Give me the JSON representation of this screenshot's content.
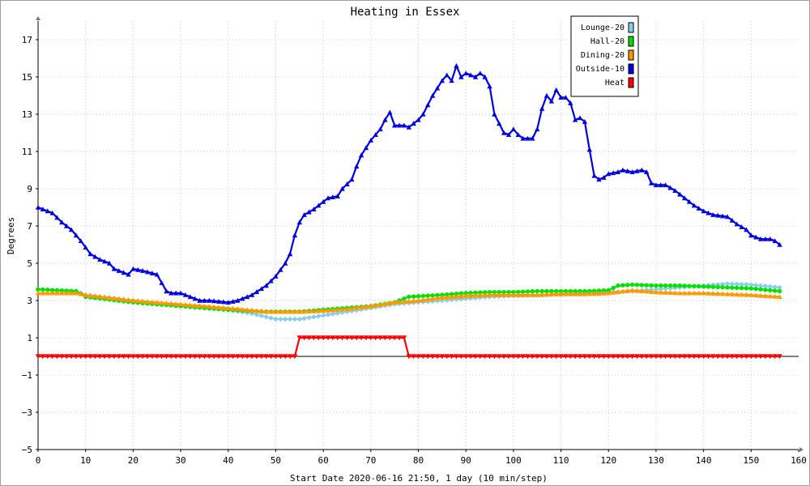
{
  "chart_data": {
    "type": "line",
    "title": "Heating in Essex",
    "xlabel": "Start Date 2020-06-16 21:50, 1 day (10 min/step)",
    "ylabel": "Degrees",
    "xlim": [
      0,
      160
    ],
    "ylim": [
      -5,
      18
    ],
    "x_ticks": [
      0,
      10,
      20,
      30,
      40,
      50,
      60,
      70,
      80,
      90,
      100,
      110,
      120,
      130,
      140,
      150,
      160
    ],
    "y_ticks": [
      -5,
      -3,
      -1,
      1,
      3,
      5,
      7,
      9,
      11,
      13,
      15,
      17
    ],
    "grid": true,
    "legend_position": "top-right",
    "series": [
      {
        "name": "Lounge-20",
        "color": "#87ceeb",
        "marker": "diamond",
        "points": [
          [
            0,
            3.6
          ],
          [
            8,
            3.5
          ],
          [
            10,
            3.3
          ],
          [
            20,
            3.0
          ],
          [
            30,
            2.7
          ],
          [
            40,
            2.5
          ],
          [
            45,
            2.3
          ],
          [
            50,
            2.0
          ],
          [
            55,
            2.0
          ],
          [
            60,
            2.2
          ],
          [
            65,
            2.4
          ],
          [
            70,
            2.6
          ],
          [
            75,
            2.8
          ],
          [
            80,
            2.9
          ],
          [
            85,
            3.0
          ],
          [
            90,
            3.1
          ],
          [
            95,
            3.2
          ],
          [
            100,
            3.25
          ],
          [
            105,
            3.3
          ],
          [
            110,
            3.35
          ],
          [
            115,
            3.4
          ],
          [
            120,
            3.45
          ],
          [
            125,
            3.5
          ],
          [
            130,
            3.6
          ],
          [
            135,
            3.7
          ],
          [
            140,
            3.8
          ],
          [
            145,
            3.9
          ],
          [
            150,
            3.85
          ],
          [
            156,
            3.7
          ]
        ]
      },
      {
        "name": "Hall-20",
        "color": "#00e000",
        "marker": "circle",
        "points": [
          [
            0,
            3.6
          ],
          [
            8,
            3.5
          ],
          [
            10,
            3.2
          ],
          [
            20,
            2.9
          ],
          [
            30,
            2.7
          ],
          [
            40,
            2.5
          ],
          [
            48,
            2.4
          ],
          [
            55,
            2.4
          ],
          [
            60,
            2.5
          ],
          [
            65,
            2.6
          ],
          [
            70,
            2.7
          ],
          [
            75,
            2.9
          ],
          [
            78,
            3.2
          ],
          [
            85,
            3.3
          ],
          [
            90,
            3.4
          ],
          [
            95,
            3.45
          ],
          [
            100,
            3.45
          ],
          [
            105,
            3.5
          ],
          [
            110,
            3.5
          ],
          [
            115,
            3.5
          ],
          [
            120,
            3.55
          ],
          [
            122,
            3.8
          ],
          [
            125,
            3.85
          ],
          [
            130,
            3.8
          ],
          [
            135,
            3.8
          ],
          [
            140,
            3.75
          ],
          [
            145,
            3.7
          ],
          [
            150,
            3.65
          ],
          [
            156,
            3.5
          ]
        ]
      },
      {
        "name": "Dining-20",
        "color": "#ff9900",
        "marker": "triangle-up",
        "points": [
          [
            0,
            3.4
          ],
          [
            8,
            3.4
          ],
          [
            10,
            3.3
          ],
          [
            20,
            3.0
          ],
          [
            30,
            2.8
          ],
          [
            40,
            2.6
          ],
          [
            48,
            2.4
          ],
          [
            55,
            2.4
          ],
          [
            60,
            2.45
          ],
          [
            65,
            2.55
          ],
          [
            70,
            2.7
          ],
          [
            75,
            2.9
          ],
          [
            80,
            3.0
          ],
          [
            85,
            3.15
          ],
          [
            90,
            3.25
          ],
          [
            95,
            3.3
          ],
          [
            100,
            3.3
          ],
          [
            105,
            3.3
          ],
          [
            110,
            3.35
          ],
          [
            115,
            3.35
          ],
          [
            120,
            3.4
          ],
          [
            125,
            3.55
          ],
          [
            130,
            3.45
          ],
          [
            135,
            3.4
          ],
          [
            140,
            3.4
          ],
          [
            145,
            3.35
          ],
          [
            150,
            3.3
          ],
          [
            156,
            3.2
          ]
        ]
      },
      {
        "name": "Outside-10",
        "color": "#0000dd",
        "marker": "triangle-up",
        "points": [
          [
            0,
            8.0
          ],
          [
            3,
            7.7
          ],
          [
            5,
            7.2
          ],
          [
            7,
            6.8
          ],
          [
            9,
            6.2
          ],
          [
            11,
            5.5
          ],
          [
            13,
            5.2
          ],
          [
            15,
            5.0
          ],
          [
            16,
            4.7
          ],
          [
            18,
            4.5
          ],
          [
            19,
            4.4
          ],
          [
            20,
            4.7
          ],
          [
            22,
            4.6
          ],
          [
            25,
            4.4
          ],
          [
            27,
            3.5
          ],
          [
            28,
            3.4
          ],
          [
            30,
            3.4
          ],
          [
            32,
            3.2
          ],
          [
            34,
            3.0
          ],
          [
            36,
            3.0
          ],
          [
            40,
            2.9
          ],
          [
            42,
            3.0
          ],
          [
            45,
            3.3
          ],
          [
            48,
            3.8
          ],
          [
            50,
            4.3
          ],
          [
            52,
            5.0
          ],
          [
            53,
            5.5
          ],
          [
            54,
            6.5
          ],
          [
            55,
            7.2
          ],
          [
            56,
            7.6
          ],
          [
            58,
            7.9
          ],
          [
            60,
            8.3
          ],
          [
            61,
            8.5
          ],
          [
            63,
            8.6
          ],
          [
            64,
            9.0
          ],
          [
            66,
            9.5
          ],
          [
            67,
            10.2
          ],
          [
            68,
            10.8
          ],
          [
            70,
            11.6
          ],
          [
            72,
            12.2
          ],
          [
            73,
            12.7
          ],
          [
            74,
            13.1
          ],
          [
            75,
            12.4
          ],
          [
            77,
            12.4
          ],
          [
            78,
            12.3
          ],
          [
            80,
            12.7
          ],
          [
            81,
            13.0
          ],
          [
            83,
            14.0
          ],
          [
            84,
            14.4
          ],
          [
            85,
            14.8
          ],
          [
            86,
            15.1
          ],
          [
            87,
            14.8
          ],
          [
            88,
            15.6
          ],
          [
            89,
            15.0
          ],
          [
            90,
            15.2
          ],
          [
            92,
            15.0
          ],
          [
            93,
            15.2
          ],
          [
            94,
            15.0
          ],
          [
            95,
            14.5
          ],
          [
            96,
            13.0
          ],
          [
            98,
            12.0
          ],
          [
            99,
            11.9
          ],
          [
            100,
            12.2
          ],
          [
            101,
            11.9
          ],
          [
            102,
            11.7
          ],
          [
            104,
            11.7
          ],
          [
            105,
            12.2
          ],
          [
            106,
            13.3
          ],
          [
            107,
            14.0
          ],
          [
            108,
            13.7
          ],
          [
            109,
            14.3
          ],
          [
            110,
            13.9
          ],
          [
            111,
            13.9
          ],
          [
            112,
            13.6
          ],
          [
            113,
            12.7
          ],
          [
            114,
            12.8
          ],
          [
            115,
            12.6
          ],
          [
            116,
            11.1
          ],
          [
            117,
            9.7
          ],
          [
            118,
            9.5
          ],
          [
            119,
            9.6
          ],
          [
            120,
            9.8
          ],
          [
            122,
            9.9
          ],
          [
            123,
            10.0
          ],
          [
            125,
            9.9
          ],
          [
            127,
            10.0
          ],
          [
            128,
            9.9
          ],
          [
            129,
            9.3
          ],
          [
            130,
            9.2
          ],
          [
            132,
            9.2
          ],
          [
            134,
            8.9
          ],
          [
            136,
            8.5
          ],
          [
            138,
            8.1
          ],
          [
            140,
            7.8
          ],
          [
            142,
            7.6
          ],
          [
            145,
            7.5
          ],
          [
            147,
            7.1
          ],
          [
            149,
            6.8
          ],
          [
            150,
            6.5
          ],
          [
            152,
            6.3
          ],
          [
            154,
            6.3
          ],
          [
            155,
            6.2
          ],
          [
            156,
            6.0
          ]
        ]
      },
      {
        "name": "Heat",
        "color": "#ff0000",
        "marker": "triangle-down",
        "points": [
          [
            0,
            0
          ],
          [
            54,
            0
          ],
          [
            55,
            1
          ],
          [
            77,
            1
          ],
          [
            78,
            0
          ],
          [
            156,
            0
          ]
        ]
      }
    ]
  }
}
